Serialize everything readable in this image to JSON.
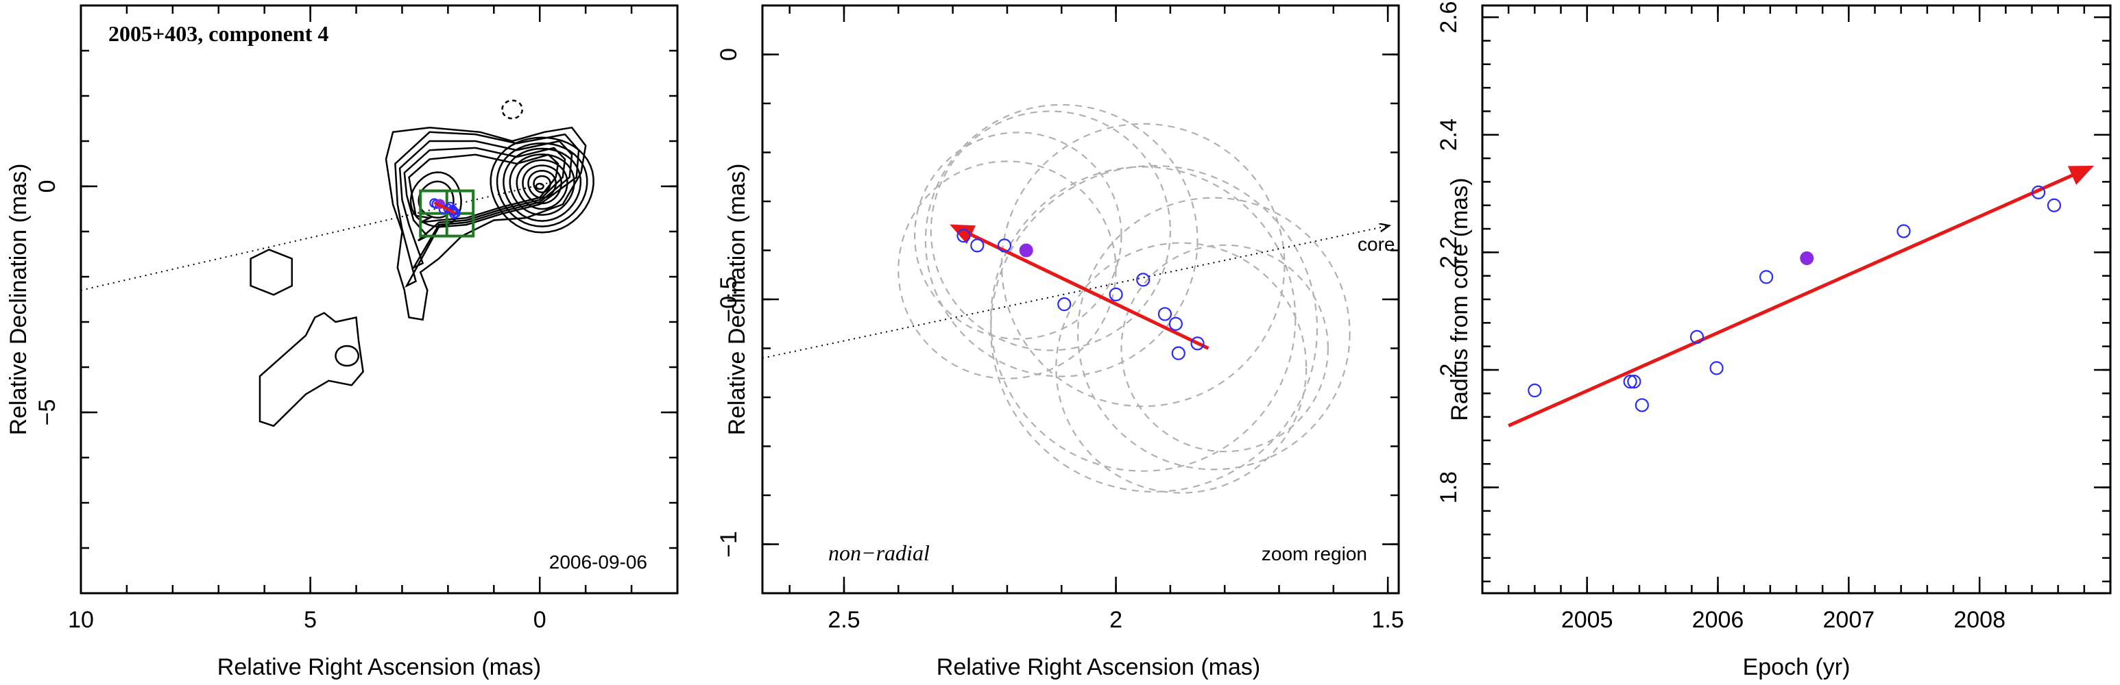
{
  "chart_data": [
    {
      "type": "contour",
      "title": "2005+403, component 4",
      "date_label": "2006-09-06",
      "xlabel": "Relative Right Ascension (mas)",
      "ylabel": "Relative Declination (mas)",
      "xlim": [
        10,
        -3
      ],
      "ylim": [
        -9,
        4
      ],
      "xticks": [
        10,
        5,
        0
      ],
      "yticks": [
        0,
        -5
      ],
      "xtick_labels": [
        "10",
        "5",
        "0"
      ],
      "ytick_labels": [
        "0",
        "−5"
      ],
      "zoom_region": {
        "x": [
          2.6,
          1.45
        ],
        "y": [
          -0.1,
          -1.1
        ]
      },
      "core_direction_line": {
        "x": [
          10,
          -0.3
        ],
        "y": [
          -2.3,
          0.1
        ]
      },
      "points": [
        {
          "x": 2.3,
          "y": -0.37
        },
        {
          "x": 2.25,
          "y": -0.39
        },
        {
          "x": 2.18,
          "y": -0.39
        },
        {
          "x": 2.1,
          "y": -0.51
        },
        {
          "x": 2.0,
          "y": -0.49
        },
        {
          "x": 1.95,
          "y": -0.45
        },
        {
          "x": 1.9,
          "y": -0.52
        },
        {
          "x": 1.88,
          "y": -0.55
        },
        {
          "x": 1.87,
          "y": -0.61
        },
        {
          "x": 1.83,
          "y": -0.59
        }
      ],
      "filled_point": {
        "x": 2.17,
        "y": -0.39
      },
      "colors": {
        "contour": "#000000",
        "zoom_box": "#1e7a1e",
        "points": "#2b2bff",
        "filled_point": "#8a2be2",
        "arrow": "#e81818"
      }
    },
    {
      "type": "scatter",
      "annotation_left": "non−radial",
      "annotation_right": "zoom region",
      "core_label": "core",
      "xlabel": "Relative Right Ascension (mas)",
      "ylabel": "Relative Declination (mas)",
      "xlim": [
        2.65,
        1.48
      ],
      "ylim": [
        -1.1,
        0.1
      ],
      "xticks": [
        2.5,
        2,
        1.5
      ],
      "yticks": [
        0,
        -0.5,
        -1
      ],
      "xtick_labels": [
        "2.5",
        "2",
        "1.5"
      ],
      "ytick_labels": [
        "0",
        "−0.5",
        "−1"
      ],
      "points": [
        {
          "x": 2.28,
          "y": -0.37
        },
        {
          "x": 2.255,
          "y": -0.39
        },
        {
          "x": 2.205,
          "y": -0.39
        },
        {
          "x": 2.095,
          "y": -0.51
        },
        {
          "x": 2.0,
          "y": -0.49
        },
        {
          "x": 1.95,
          "y": -0.46
        },
        {
          "x": 1.91,
          "y": -0.53
        },
        {
          "x": 1.89,
          "y": -0.55
        },
        {
          "x": 1.885,
          "y": -0.61
        },
        {
          "x": 1.85,
          "y": -0.59
        }
      ],
      "filled_point": {
        "x": 2.165,
        "y": -0.4
      },
      "component_circles": [
        {
          "x": 2.18,
          "y": -0.37,
          "r": 0.19
        },
        {
          "x": 2.12,
          "y": -0.36,
          "r": 0.22
        },
        {
          "x": 2.1,
          "y": -0.38,
          "r": 0.25
        },
        {
          "x": 2.2,
          "y": -0.44,
          "r": 0.2
        },
        {
          "x": 1.95,
          "y": -0.43,
          "r": 0.26
        },
        {
          "x": 1.95,
          "y": -0.54,
          "r": 0.28
        },
        {
          "x": 1.93,
          "y": -0.56,
          "r": 0.3
        },
        {
          "x": 1.82,
          "y": -0.57,
          "r": 0.25
        },
        {
          "x": 1.88,
          "y": -0.64,
          "r": 0.23
        },
        {
          "x": 1.8,
          "y": -0.6,
          "r": 0.19
        }
      ],
      "motion_arrow": {
        "from": {
          "x": 1.83,
          "y": -0.6
        },
        "to": {
          "x": 2.3,
          "y": -0.35
        }
      },
      "core_direction_line": {
        "x": [
          2.65,
          1.5
        ],
        "y": [
          -0.62,
          -0.35
        ]
      },
      "colors": {
        "circles": "#b0b0b0",
        "points": "#2b2bff",
        "filled_point": "#8a2be2",
        "arrow": "#e81818"
      }
    },
    {
      "type": "scatter",
      "xlabel": "Epoch (yr)",
      "ylabel": "Radius from core (mas)",
      "xlim": [
        2004.2,
        2009.0
      ],
      "ylim": [
        1.62,
        2.62
      ],
      "xticks": [
        2005,
        2006,
        2007,
        2008
      ],
      "yticks": [
        1.8,
        2,
        2.2,
        2.4,
        2.6
      ],
      "xtick_labels": [
        "2005",
        "2006",
        "2007",
        "2008"
      ],
      "ytick_labels": [
        "1.8",
        "2",
        "2.2",
        "2.4",
        "2.6"
      ],
      "points": [
        {
          "x": 2004.6,
          "y": 1.965
        },
        {
          "x": 2005.33,
          "y": 1.98
        },
        {
          "x": 2005.36,
          "y": 1.98
        },
        {
          "x": 2005.42,
          "y": 1.94
        },
        {
          "x": 2005.84,
          "y": 2.056
        },
        {
          "x": 2005.99,
          "y": 2.003
        },
        {
          "x": 2006.37,
          "y": 2.158
        },
        {
          "x": 2007.42,
          "y": 2.236
        },
        {
          "x": 2008.45,
          "y": 2.302
        },
        {
          "x": 2008.57,
          "y": 2.28
        }
      ],
      "filled_point": {
        "x": 2006.68,
        "y": 2.19
      },
      "fit_arrow": {
        "from": {
          "x": 2004.4,
          "y": 1.905
        },
        "to": {
          "x": 2008.85,
          "y": 2.345
        }
      },
      "colors": {
        "points": "#2b2bff",
        "filled_point": "#8a2be2",
        "arrow": "#e81818"
      }
    }
  ]
}
